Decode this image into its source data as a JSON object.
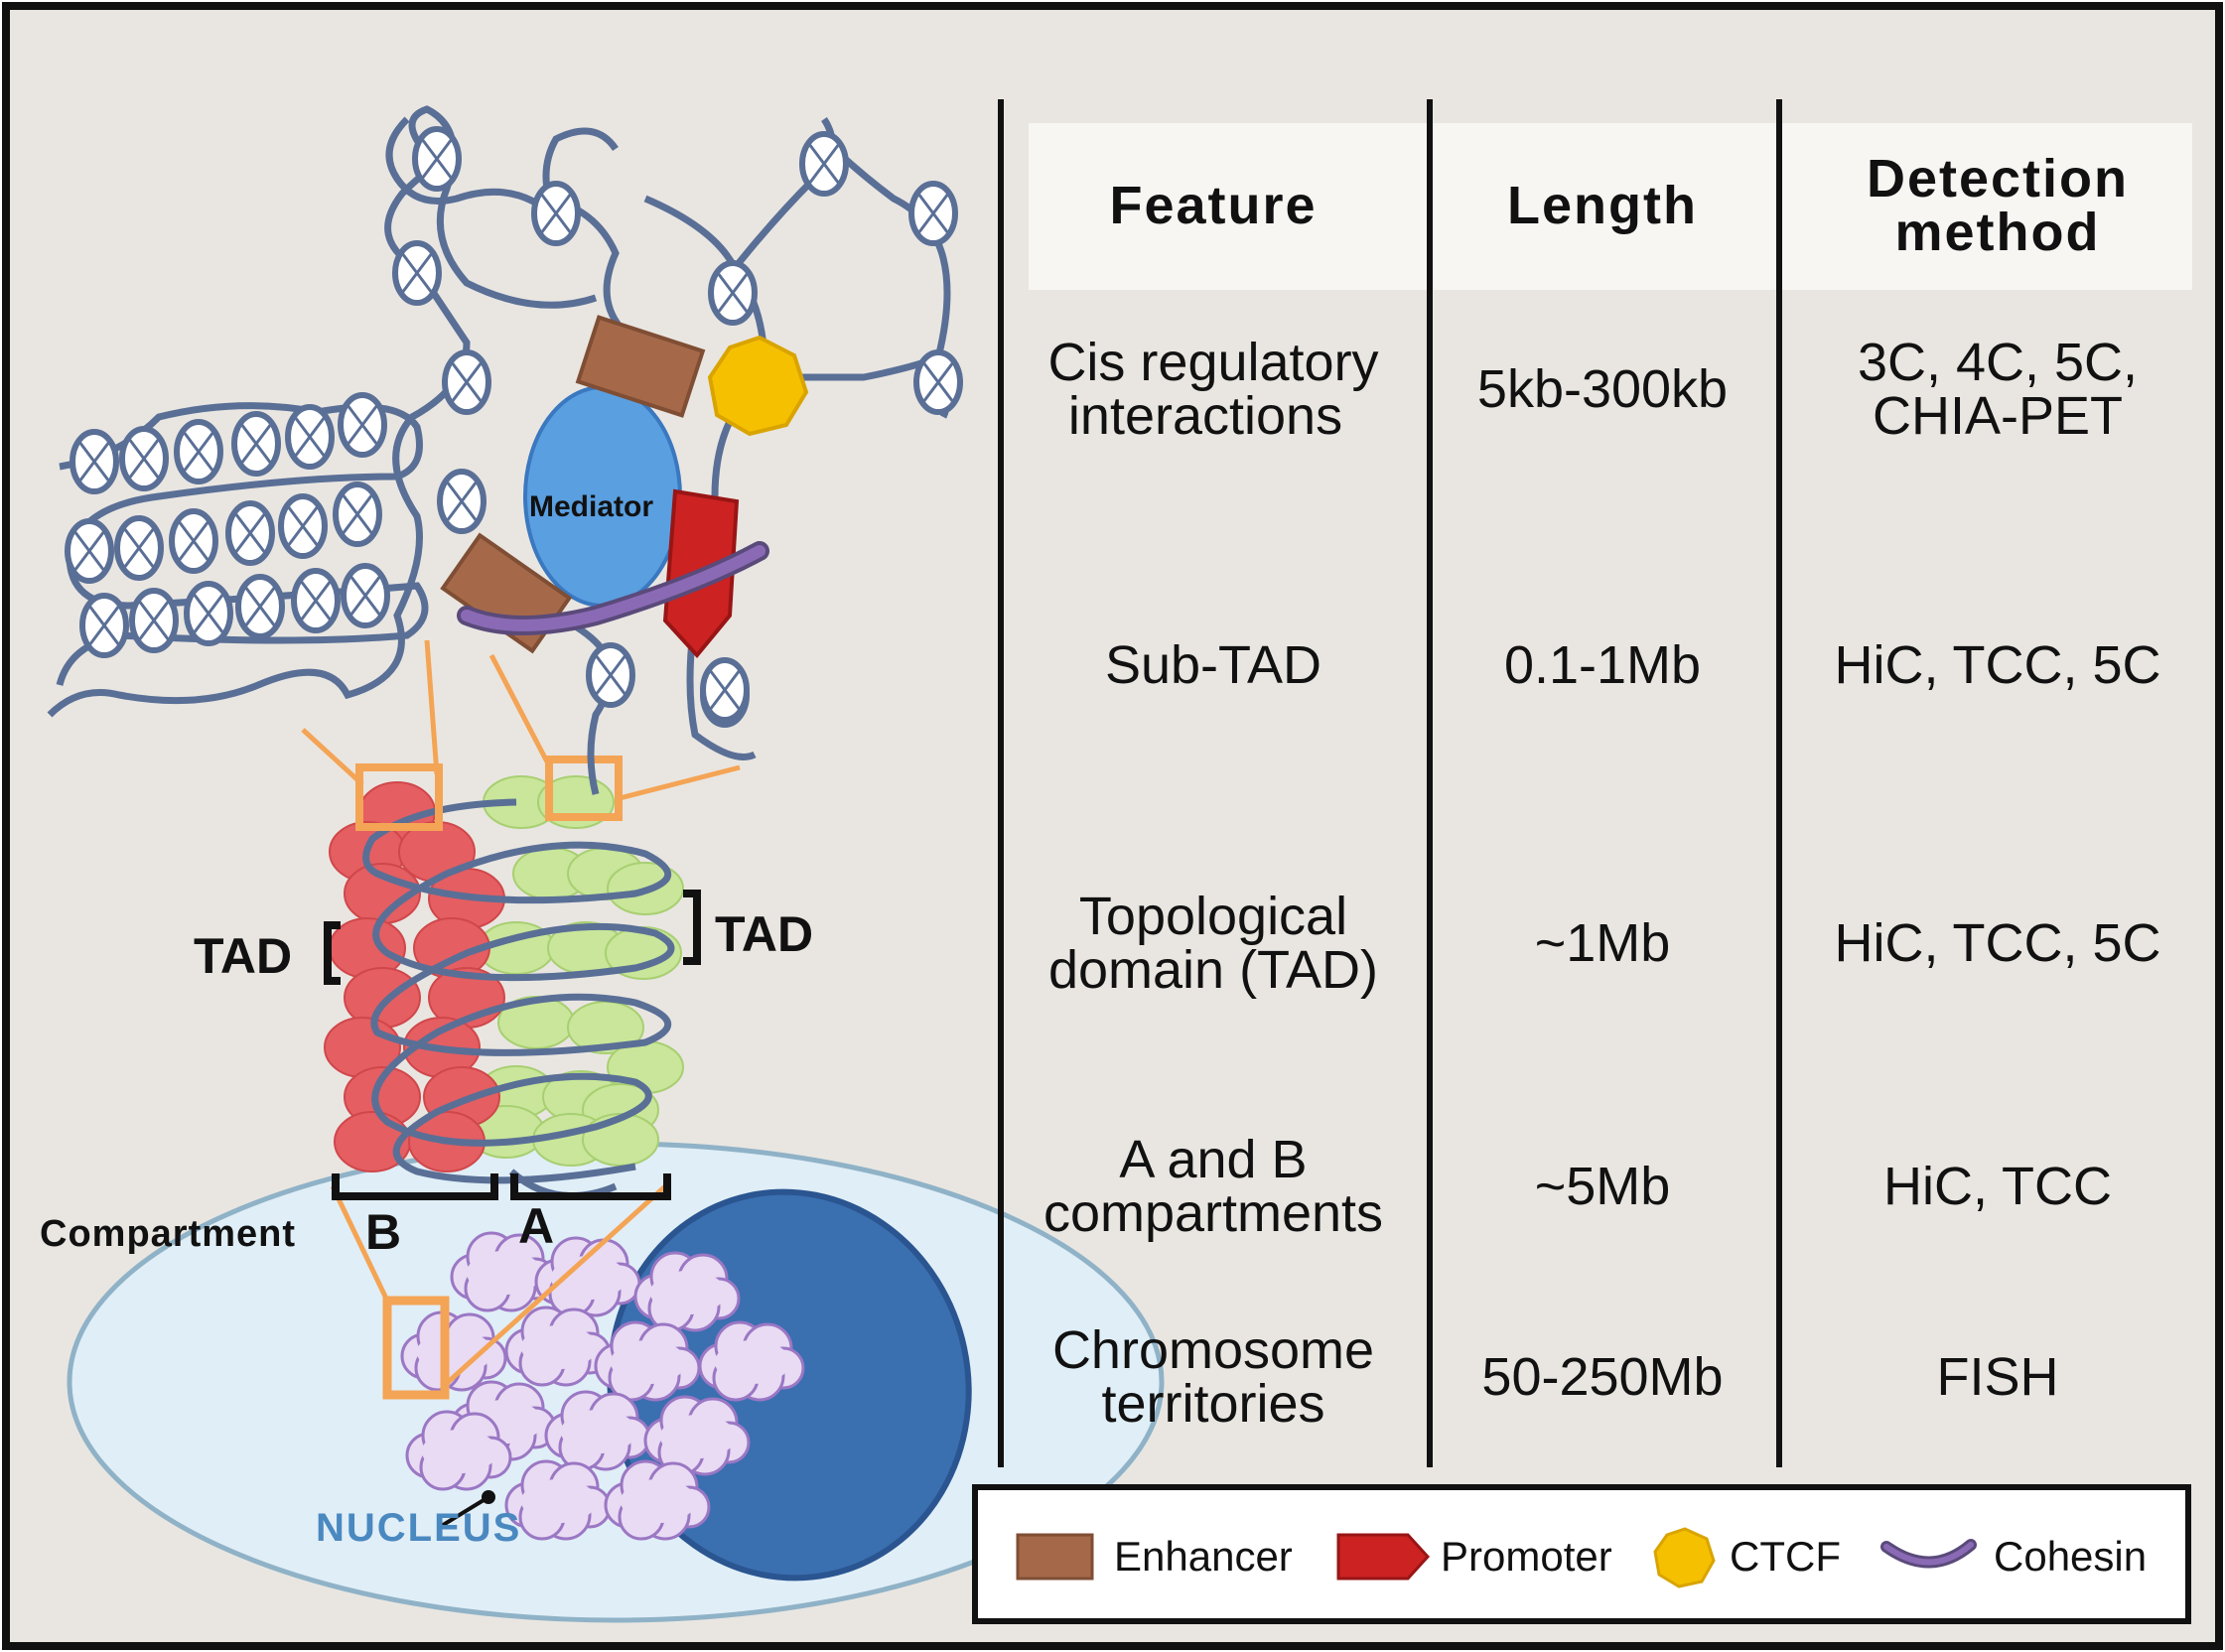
{
  "diagram": {
    "labels": {
      "mediator": "Mediator",
      "tad_left": "TAD",
      "tad_right": "TAD",
      "compartment": "Compartment",
      "comp_b": "B",
      "comp_a": "A",
      "nucleus": "NUCLEUS"
    }
  },
  "table": {
    "headers": [
      "Feature",
      [
        "Length"
      ],
      [
        "Detection",
        "method"
      ]
    ],
    "header_feature": "Feature",
    "header_length": "Length",
    "header_detection_1": "Detection",
    "header_detection_2": "method",
    "rows": [
      {
        "feature": [
          "Cis regulatory",
          "interactions"
        ],
        "length": "5kb-300kb",
        "method": [
          "3C, 4C, 5C,",
          "CHIA-PET"
        ]
      },
      {
        "feature": [
          "Sub-TAD"
        ],
        "length": "0.1-1Mb",
        "method": [
          "HiC, TCC, 5C"
        ]
      },
      {
        "feature": [
          "Topological",
          "domain (TAD)"
        ],
        "length": "~1Mb",
        "method": [
          "HiC, TCC, 5C"
        ]
      },
      {
        "feature": [
          "A and B",
          "compartments"
        ],
        "length": "~5Mb",
        "method": [
          "HiC, TCC"
        ]
      },
      {
        "feature": [
          "Chromosome",
          "territories"
        ],
        "length": "50-250Mb",
        "method": [
          "FISH"
        ]
      }
    ]
  },
  "legend": {
    "items": [
      {
        "label": "Enhancer",
        "icon": "enhancer-icon",
        "color": "#a5694a"
      },
      {
        "label": "Promoter",
        "icon": "promoter-icon",
        "color": "#cc2222"
      },
      {
        "label": "CTCF",
        "icon": "ctcf-icon",
        "color": "#f5c000"
      },
      {
        "label": "Cohesin",
        "icon": "cohesin-icon",
        "color": "#7a5aa0"
      }
    ]
  },
  "colors": {
    "background": "#e9e6e1",
    "chromatin": "#5a6f96",
    "red_domain": "#e45e62",
    "green_domain": "#c9e69a",
    "orange": "#f4a455",
    "mediator": "#5a9fe0",
    "nucleus_outer": "#e0eef7",
    "nucleus_inner": "#3a6fb0",
    "territory": "#e5d5f0",
    "nucleus_label": "#4a88c0"
  }
}
